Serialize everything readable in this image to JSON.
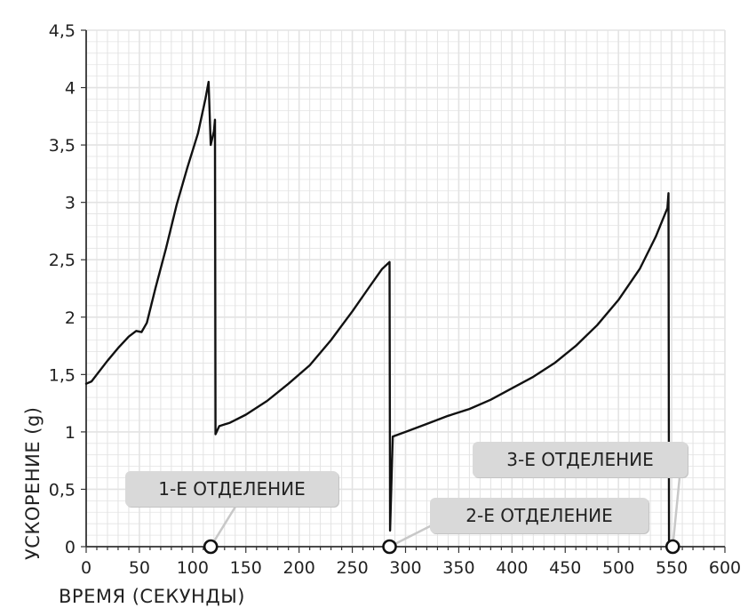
{
  "chart_data": {
    "type": "line",
    "xlabel": "ВРЕМЯ (СЕКУНДЫ)",
    "ylabel": "УСКОРЕНИЕ (g)",
    "xlim": [
      0,
      600
    ],
    "ylim": [
      0,
      4.5
    ],
    "x_ticks": [
      "0",
      "50",
      "100",
      "150",
      "200",
      "250",
      "300",
      "350",
      "400",
      "450",
      "500",
      "550",
      "600"
    ],
    "y_ticks": [
      "0",
      "0,5",
      "1",
      "1,5",
      "2",
      "2,5",
      "3",
      "3,5",
      "4",
      "4,5"
    ],
    "grid": true,
    "series": [
      {
        "x": [
          0,
          5,
          10,
          20,
          30,
          40,
          47,
          52,
          57,
          65,
          75,
          85,
          95,
          105,
          112,
          115,
          117,
          120,
          121,
          121.5,
          125,
          135,
          150,
          170,
          190,
          210,
          230,
          250,
          265,
          278,
          285,
          285.5,
          288,
          300,
          320,
          340,
          360,
          380,
          400,
          420,
          440,
          460,
          480,
          500,
          520,
          535,
          546,
          547,
          547.5
        ],
        "y": [
          1.42,
          1.44,
          1.5,
          1.62,
          1.73,
          1.83,
          1.88,
          1.87,
          1.95,
          2.25,
          2.6,
          2.98,
          3.3,
          3.6,
          3.9,
          4.05,
          3.5,
          3.62,
          3.72,
          0.98,
          1.05,
          1.08,
          1.15,
          1.27,
          1.42,
          1.58,
          1.8,
          2.05,
          2.25,
          2.42,
          2.48,
          0.14,
          0.96,
          1.0,
          1.07,
          1.14,
          1.2,
          1.28,
          1.38,
          1.48,
          1.6,
          1.75,
          1.93,
          2.15,
          2.42,
          2.7,
          2.95,
          3.08,
          0.0
        ]
      }
    ],
    "markers": [
      {
        "x": 117,
        "y": 0
      },
      {
        "x": 285,
        "y": 0
      },
      {
        "x": 551,
        "y": 0
      }
    ],
    "annotations": [
      "1-Е ОТДЕЛЕНИЕ",
      "2-Е ОТДЕЛЕНИЕ",
      "3-Е ОТДЕЛЕНИЕ"
    ],
    "colors": {
      "line": "#111111",
      "grid": "#e3e3e3",
      "callout_bg": "#d9d9d9",
      "leader": "#c8c8c8"
    }
  }
}
